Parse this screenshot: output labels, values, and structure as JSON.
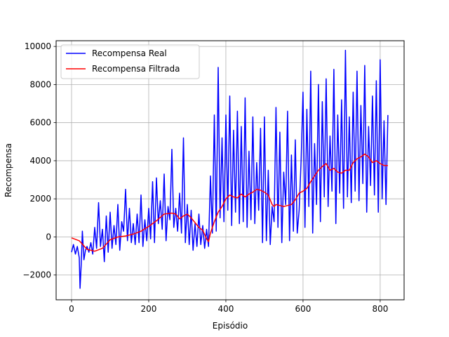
{
  "chart_data": {
    "type": "line",
    "xlabel": "Episódio",
    "ylabel": "Recompensa",
    "xlim": [
      -40,
      862
    ],
    "ylim": [
      -3300,
      10300
    ],
    "xticks": [
      0,
      200,
      400,
      600,
      800
    ],
    "yticks": [
      -2000,
      0,
      2000,
      4000,
      6000,
      8000,
      10000
    ],
    "grid": true,
    "legend_position": "top-left",
    "series": [
      {
        "name": "Recompensa Real",
        "color": "#0000ff",
        "x": [
          0,
          5,
          10,
          15,
          20,
          22,
          25,
          28,
          32,
          36,
          40,
          45,
          50,
          55,
          60,
          65,
          70,
          75,
          80,
          85,
          90,
          95,
          100,
          105,
          110,
          115,
          120,
          125,
          130,
          135,
          140,
          145,
          150,
          155,
          160,
          165,
          170,
          175,
          180,
          185,
          190,
          195,
          200,
          205,
          210,
          215,
          220,
          225,
          230,
          235,
          240,
          245,
          250,
          255,
          260,
          265,
          270,
          275,
          280,
          285,
          290,
          295,
          300,
          305,
          310,
          315,
          320,
          325,
          330,
          335,
          340,
          345,
          350,
          355,
          360,
          365,
          370,
          375,
          380,
          385,
          390,
          395,
          400,
          405,
          410,
          415,
          420,
          425,
          430,
          435,
          440,
          445,
          450,
          455,
          460,
          465,
          470,
          475,
          480,
          485,
          490,
          495,
          500,
          505,
          510,
          515,
          520,
          525,
          530,
          535,
          540,
          545,
          550,
          555,
          560,
          565,
          570,
          575,
          580,
          585,
          590,
          595,
          600,
          605,
          610,
          615,
          620,
          625,
          630,
          635,
          640,
          645,
          650,
          655,
          660,
          665,
          670,
          675,
          680,
          685,
          690,
          695,
          700,
          705,
          710,
          715,
          720,
          725,
          730,
          735,
          740,
          745,
          750,
          755,
          760,
          765,
          770,
          775,
          780,
          785,
          790,
          795,
          800,
          805,
          810,
          815,
          820
        ],
        "y": [
          -800,
          -400,
          -900,
          -500,
          -1100,
          -2700,
          -1500,
          300,
          -1200,
          -700,
          -500,
          -800,
          -300,
          -900,
          500,
          -600,
          1800,
          -500,
          400,
          -1300,
          1100,
          -800,
          1300,
          -600,
          600,
          -400,
          1700,
          -700,
          800,
          300,
          2500,
          -200,
          1500,
          -300,
          700,
          -400,
          1200,
          -300,
          2200,
          -500,
          900,
          -200,
          1500,
          -100,
          2900,
          -300,
          3100,
          700,
          1900,
          400,
          3300,
          -200,
          1600,
          900,
          4600,
          500,
          1500,
          300,
          2300,
          200,
          5200,
          -300,
          1700,
          -400,
          1400,
          -700,
          700,
          -500,
          1200,
          -400,
          600,
          -600,
          400,
          -500,
          3200,
          200,
          6400,
          300,
          8900,
          1000,
          5200,
          800,
          6400,
          1400,
          7400,
          600,
          5600,
          1300,
          6600,
          700,
          5800,
          800,
          7300,
          500,
          4500,
          900,
          6300,
          700,
          3900,
          1400,
          5700,
          -300,
          6300,
          -200,
          3500,
          -400,
          1600,
          800,
          6800,
          500,
          5500,
          -300,
          3400,
          1700,
          6600,
          -200,
          4300,
          300,
          5100,
          200,
          1400,
          4000,
          7600,
          500,
          6700,
          1600,
          8700,
          200,
          4900,
          1700,
          8000,
          800,
          7100,
          2100,
          8300,
          1600,
          5300,
          2400,
          8800,
          700,
          6400,
          2300,
          7200,
          1500,
          9800,
          2100,
          6300,
          1800,
          7600,
          2400,
          8700,
          1900,
          6900,
          2800,
          9000,
          1300,
          5800,
          2700,
          7400,
          2200,
          8200,
          1300,
          9300,
          2000,
          6100,
          1700,
          6400
        ]
      },
      {
        "name": "Recompensa Filtrada",
        "color": "#ff0000",
        "x": [
          0,
          20,
          40,
          60,
          80,
          100,
          120,
          140,
          160,
          180,
          200,
          220,
          240,
          260,
          270,
          280,
          290,
          300,
          310,
          320,
          330,
          340,
          350,
          355,
          360,
          370,
          380,
          390,
          400,
          410,
          420,
          430,
          440,
          450,
          460,
          470,
          480,
          490,
          500,
          510,
          520,
          525,
          530,
          540,
          550,
          560,
          570,
          580,
          590,
          600,
          610,
          620,
          630,
          640,
          650,
          660,
          670,
          680,
          690,
          700,
          710,
          720,
          730,
          740,
          750,
          760,
          770,
          780,
          790,
          800,
          810,
          820
        ],
        "y": [
          -50,
          -200,
          -650,
          -750,
          -600,
          -150,
          0,
          50,
          150,
          300,
          550,
          850,
          1200,
          1250,
          1200,
          950,
          1100,
          1200,
          1000,
          750,
          500,
          350,
          -100,
          -250,
          200,
          800,
          1300,
          1600,
          2000,
          2200,
          2100,
          2050,
          2250,
          2100,
          2250,
          2350,
          2500,
          2450,
          2350,
          2200,
          1700,
          1600,
          1700,
          1650,
          1600,
          1650,
          1700,
          1950,
          2300,
          2400,
          2550,
          2900,
          3200,
          3500,
          3700,
          3850,
          3500,
          3600,
          3400,
          3350,
          3500,
          3500,
          3900,
          4100,
          4200,
          4350,
          4200,
          3900,
          4000,
          3850,
          3750,
          3750
        ]
      }
    ]
  }
}
